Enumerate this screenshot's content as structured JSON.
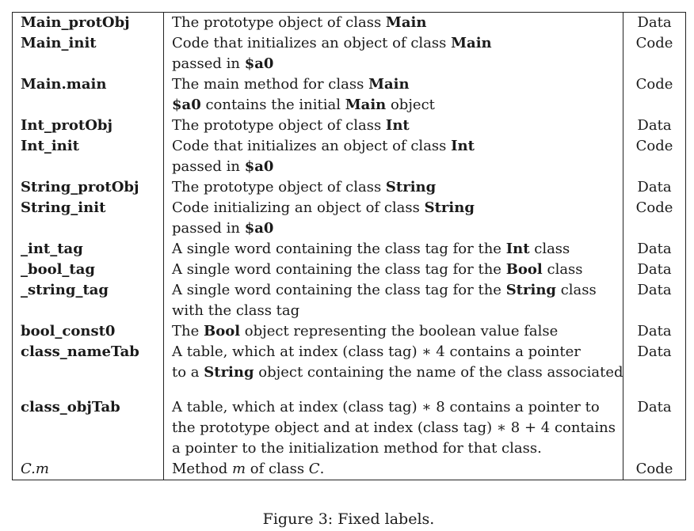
{
  "table": {
    "rows": [
      {
        "label": "Main_protObj",
        "label_style": "bold",
        "desc": [
          [
            [
              "The prototype object of class ",
              ""
            ],
            [
              "Main",
              "b"
            ]
          ]
        ],
        "kind": "Data"
      },
      {
        "label": "Main_init",
        "label_style": "bold",
        "desc": [
          [
            [
              "Code that initializes an object of class ",
              ""
            ],
            [
              "Main",
              "b"
            ]
          ],
          [
            [
              "passed in ",
              ""
            ],
            [
              "$a0",
              "b"
            ]
          ]
        ],
        "kind": "Code"
      },
      {
        "label": "Main.main",
        "label_style": "bold",
        "desc": [
          [
            [
              "The main method for class ",
              ""
            ],
            [
              "Main",
              "b"
            ]
          ],
          [
            [
              "$a0",
              "b"
            ],
            [
              " contains the initial ",
              ""
            ],
            [
              "Main",
              "b"
            ],
            [
              " object",
              ""
            ]
          ]
        ],
        "kind": "Code"
      },
      {
        "label": "Int_protObj",
        "label_style": "bold",
        "desc": [
          [
            [
              "The prototype object of class ",
              ""
            ],
            [
              "Int",
              "b"
            ]
          ]
        ],
        "kind": "Data"
      },
      {
        "label": "Int_init",
        "label_style": "bold",
        "desc": [
          [
            [
              "Code that initializes an object of class ",
              ""
            ],
            [
              "Int",
              "b"
            ]
          ],
          [
            [
              "passed in ",
              ""
            ],
            [
              "$a0",
              "b"
            ]
          ]
        ],
        "kind": "Code"
      },
      {
        "label": "String_protObj",
        "label_style": "bold",
        "desc": [
          [
            [
              "The prototype object of class ",
              ""
            ],
            [
              "String",
              "b"
            ]
          ]
        ],
        "kind": "Data"
      },
      {
        "label": "String_init",
        "label_style": "bold",
        "desc": [
          [
            [
              "Code initializing an object of class ",
              ""
            ],
            [
              "String",
              "b"
            ]
          ],
          [
            [
              "passed in ",
              ""
            ],
            [
              "$a0",
              "b"
            ]
          ]
        ],
        "kind": "Code"
      },
      {
        "label": "_int_tag",
        "label_style": "bold",
        "desc": [
          [
            [
              "A single word containing the class tag for the ",
              ""
            ],
            [
              "Int",
              "b"
            ],
            [
              " class",
              ""
            ]
          ]
        ],
        "kind": "Data"
      },
      {
        "label": "_bool_tag",
        "label_style": "bold",
        "desc": [
          [
            [
              "A single word containing the class tag for the ",
              ""
            ],
            [
              "Bool",
              "b"
            ],
            [
              " class",
              ""
            ]
          ]
        ],
        "kind": "Data"
      },
      {
        "label": "_string_tag",
        "label_style": "bold",
        "desc": [
          [
            [
              "A single word containing the class tag for the ",
              ""
            ],
            [
              "String",
              "b"
            ],
            [
              " class",
              ""
            ]
          ],
          [
            [
              "with the class tag",
              ""
            ]
          ]
        ],
        "kind": "Data"
      },
      {
        "label": "bool_const0",
        "label_style": "bold",
        "desc": [
          [
            [
              "The ",
              ""
            ],
            [
              "Bool",
              "b"
            ],
            [
              " object representing the boolean value false",
              ""
            ]
          ]
        ],
        "kind": "Data"
      },
      {
        "label": "class_nameTab",
        "label_style": "bold",
        "gap_after": true,
        "desc": [
          [
            [
              "A table, which at index (class tag) ∗ 4 contains a pointer",
              ""
            ]
          ],
          [
            [
              "to a ",
              ""
            ],
            [
              "String",
              "b"
            ],
            [
              " object containing the name of the class associated",
              ""
            ]
          ]
        ],
        "kind": "Data"
      },
      {
        "label": "class_objTab",
        "label_style": "bold",
        "desc": [
          [
            [
              "A table, which at index (class tag) ∗ 8 contains a pointer to",
              ""
            ]
          ],
          [
            [
              "the prototype object and at index (class tag) ∗ 8 + 4 contains",
              ""
            ]
          ],
          [
            [
              "a pointer to the initialization method for that class.",
              ""
            ]
          ]
        ],
        "kind": "Data"
      },
      {
        "label": "C.m",
        "label_style": "math",
        "desc": [
          [
            [
              "Method ",
              ""
            ],
            [
              "m",
              "i"
            ],
            [
              " of class ",
              ""
            ],
            [
              "C",
              "i"
            ],
            [
              ".",
              ""
            ]
          ]
        ],
        "kind": "Code"
      }
    ]
  },
  "caption": "Figure 3: Fixed labels."
}
